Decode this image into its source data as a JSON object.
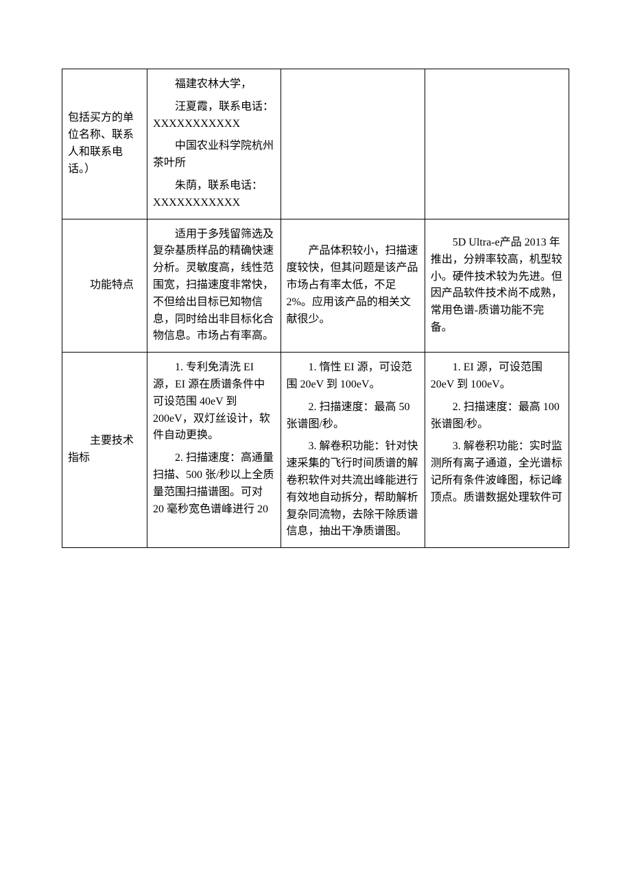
{
  "table": {
    "row1": {
      "label": "包括买方的单位名称、联系人和联系电话。）",
      "col1_p1": "福建农林大学，",
      "col1_p2": "汪夏霞，联系电话：XXXXXXXXXXX",
      "col1_p3": "中国农业科学院杭州茶叶所",
      "col1_p4": "朱荫，联系电话：XXXXXXXXXXX",
      "col2": "",
      "col3": ""
    },
    "row2": {
      "label": "功能特点",
      "col1": "适用于多残留筛选及复杂基质样品的精确快速分析。灵敏度高，线性范围宽，扫描速度非常快，不但给出目标已知物信息，同时给出非目标化合物信息。市场占有率高。",
      "col2": "产品体积较小，扫描速度较快，但其问题是该产品市场占有率太低，不足 2%。应用该产品的相关文献很少。",
      "col3": "5D Ultra-e产品 2013 年推出，分辨率较高，机型较小。硬件技术较为先进。但因产品软件技术尚不成熟，常用色谱-质谱功能不完备。"
    },
    "row3": {
      "label": "主要技术指标",
      "col1_p1": "1. 专利免清洗 EI 源，EI 源在质谱条件中可设范围 40eV 到 200eV，双灯丝设计，软件自动更换。",
      "col1_p2": "2. 扫描速度：高通量扫描、500 张/秒以上全质量范围扫描谱图。可对 20 毫秒宽色谱峰进行 20",
      "col2_p1": "1. 惰性 EI 源，可设范围 20eV 到 100eV。",
      "col2_p2": "2. 扫描速度：最高 50 张谱图/秒。",
      "col2_p3": "3. 解卷积功能：针对快速采集的飞行时间质谱的解卷积软件对共流出峰能进行有效地自动拆分，帮助解析复杂同流物，去除干除质谱信息，抽出干净质谱图。",
      "col3_p1": "1. EI 源，可设范围 20eV 到 100eV。",
      "col3_p2": "2. 扫描速度：最高 100 张谱图/秒。",
      "col3_p3": "3. 解卷积功能：实时监测所有离子通道，全光谱标记所有条件波峰图，标记峰顶点。质谱数据处理软件可"
    }
  }
}
